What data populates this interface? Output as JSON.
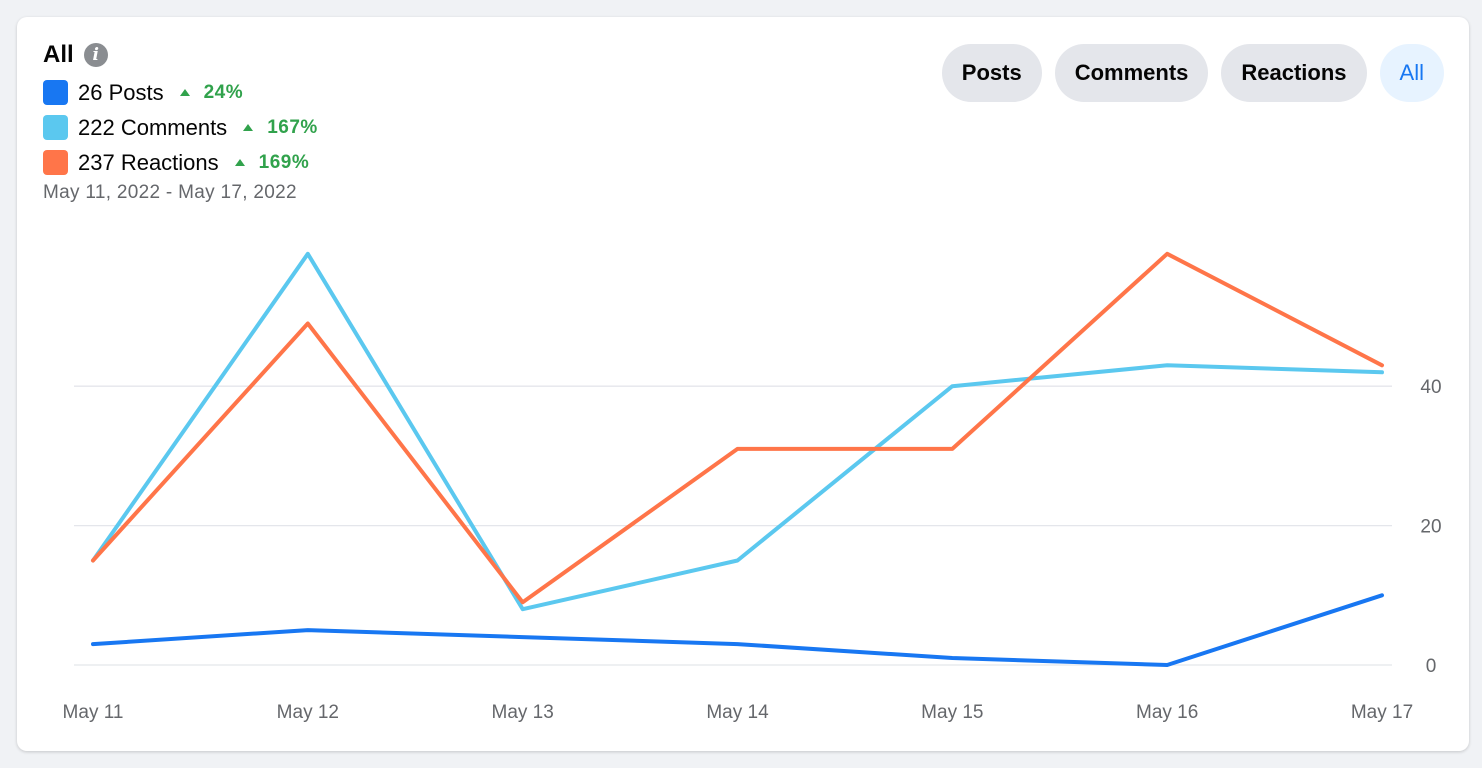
{
  "header": {
    "title": "All",
    "info_icon": "info-icon",
    "date_range": "May 11, 2022 - May 17, 2022"
  },
  "legend": [
    {
      "label": "26 Posts",
      "delta": "24%",
      "color": "#1877f2",
      "trend": "up"
    },
    {
      "label": "222 Comments",
      "delta": "167%",
      "color": "#5bc8ef",
      "trend": "up"
    },
    {
      "label": "237 Reactions",
      "delta": "169%",
      "color": "#ff7549",
      "trend": "up"
    }
  ],
  "tabs": [
    {
      "label": "Posts",
      "active": false
    },
    {
      "label": "Comments",
      "active": false
    },
    {
      "label": "Reactions",
      "active": false
    },
    {
      "label": "All",
      "active": true
    }
  ],
  "colors": {
    "accent": "#1877f2",
    "positive": "#31a24c"
  },
  "chart_data": {
    "type": "line",
    "x": [
      "May 11",
      "May 12",
      "May 13",
      "May 14",
      "May 15",
      "May 16",
      "May 17"
    ],
    "series": [
      {
        "name": "Posts",
        "color": "#1877f2",
        "values": [
          3,
          5,
          4,
          3,
          1,
          0,
          10
        ]
      },
      {
        "name": "Comments",
        "color": "#5bc8ef",
        "values": [
          15,
          59,
          8,
          15,
          40,
          43,
          42
        ]
      },
      {
        "name": "Reactions",
        "color": "#ff7549",
        "values": [
          15,
          49,
          9,
          31,
          31,
          59,
          43
        ]
      }
    ],
    "yticks": [
      0,
      20,
      40
    ],
    "ylim": [
      0,
      59
    ],
    "grid": true,
    "y_axis_side": "right"
  }
}
